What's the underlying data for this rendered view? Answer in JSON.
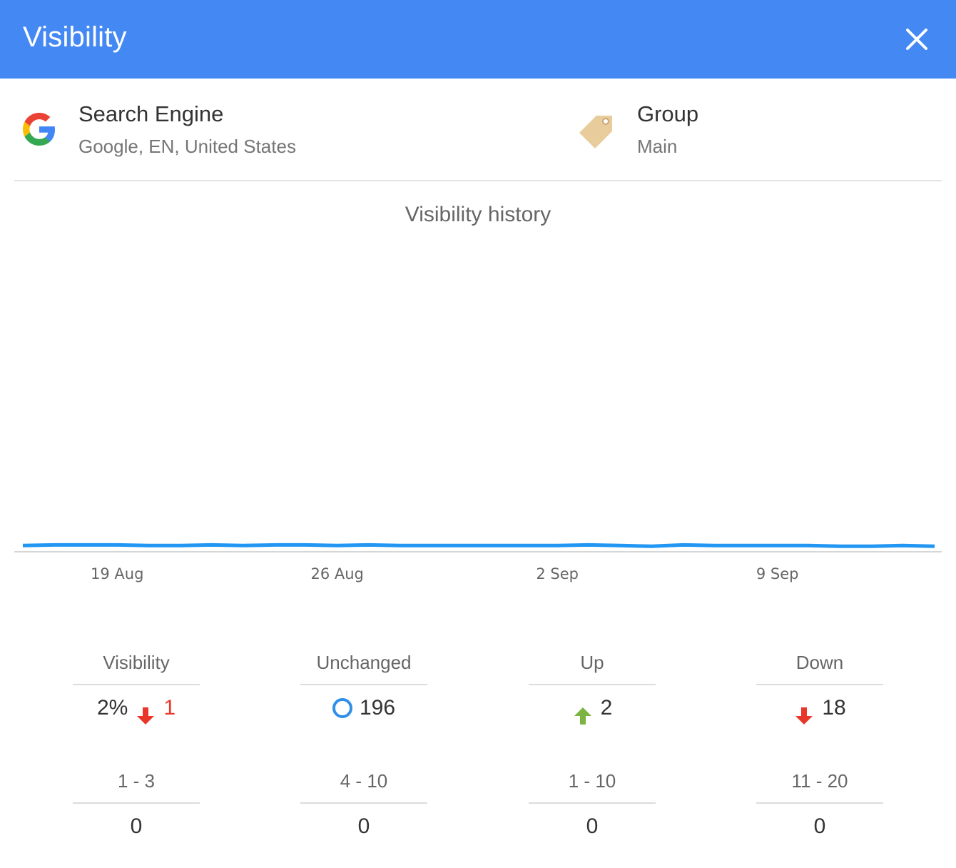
{
  "window": {
    "title": "Visibility",
    "close_icon": "close-icon"
  },
  "info": {
    "search_engine": {
      "label": "Search Engine",
      "value": "Google, EN, United States",
      "icon": "google-logo-icon"
    },
    "group": {
      "label": "Group",
      "value": "Main",
      "icon": "tag-icon"
    }
  },
  "colors": {
    "header": "#4488f4",
    "line": "#2196f3",
    "down": "#e8362a",
    "up": "#7cb342",
    "unchanged": "#2f8fe9"
  },
  "chart_data": {
    "type": "line",
    "title": "Visibility history",
    "x_tick_labels": [
      "19 Aug",
      "26 Aug",
      "2 Sep",
      "9 Sep"
    ],
    "x": [
      "16 Aug",
      "17 Aug",
      "18 Aug",
      "19 Aug",
      "20 Aug",
      "21 Aug",
      "22 Aug",
      "23 Aug",
      "24 Aug",
      "25 Aug",
      "26 Aug",
      "27 Aug",
      "28 Aug",
      "29 Aug",
      "30 Aug",
      "31 Aug",
      "1 Sep",
      "2 Sep",
      "3 Sep",
      "4 Sep",
      "5 Sep",
      "6 Sep",
      "7 Sep",
      "8 Sep",
      "9 Sep",
      "10 Sep",
      "11 Sep",
      "12 Sep",
      "13 Sep",
      "14 Sep"
    ],
    "series": [
      {
        "values": [
          2.0,
          2.2,
          2.2,
          2.2,
          2.0,
          2.0,
          2.2,
          2.0,
          2.2,
          2.2,
          2.0,
          2.2,
          2.0,
          2.0,
          2.0,
          2.0,
          2.0,
          2.0,
          2.2,
          2.0,
          1.8,
          2.2,
          2.0,
          2.0,
          2.0,
          2.0,
          1.8,
          1.8,
          2.0,
          1.8
        ]
      }
    ],
    "ylim": [
      0,
      100
    ],
    "grid": false
  },
  "stats": {
    "visibility": {
      "label": "Visibility",
      "value": "2%",
      "change": "1"
    },
    "unchanged": {
      "label": "Unchanged",
      "value": "196"
    },
    "up": {
      "label": "Up",
      "value": "2"
    },
    "down": {
      "label": "Down",
      "value": "18"
    },
    "top3": {
      "label": "1 - 3",
      "value": "0"
    },
    "top4_10": {
      "label": "4 - 10",
      "value": "0"
    },
    "top10": {
      "label": "1 - 10",
      "value": "0"
    },
    "top11_20": {
      "label": "11 - 20",
      "value": "0"
    }
  }
}
